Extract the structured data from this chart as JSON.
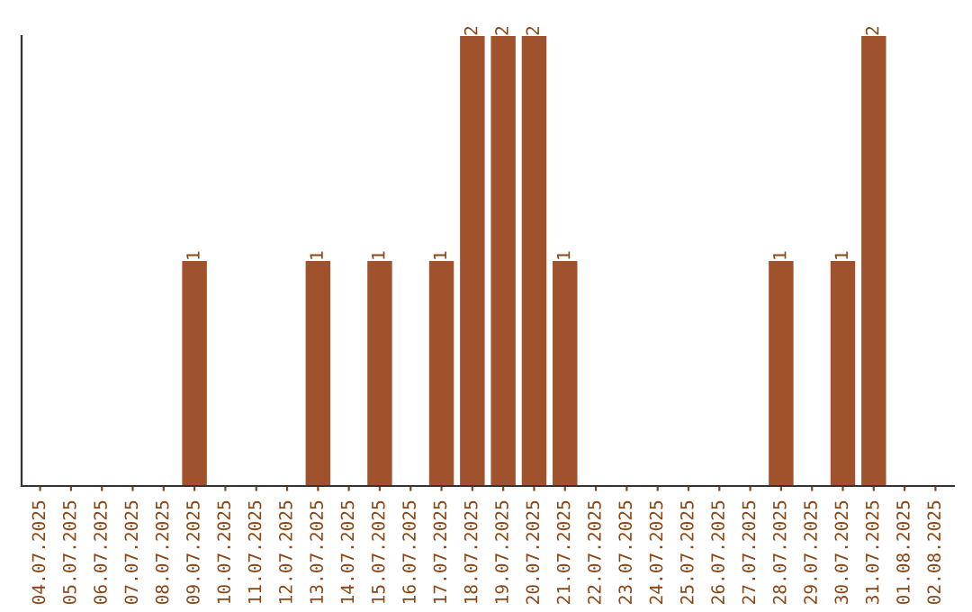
{
  "chart_data": {
    "type": "bar",
    "categories": [
      "04.07.2025",
      "05.07.2025",
      "06.07.2025",
      "07.07.2025",
      "08.07.2025",
      "09.07.2025",
      "10.07.2025",
      "11.07.2025",
      "12.07.2025",
      "13.07.2025",
      "14.07.2025",
      "15.07.2025",
      "16.07.2025",
      "17.07.2025",
      "18.07.2025",
      "19.07.2025",
      "20.07.2025",
      "21.07.2025",
      "22.07.2025",
      "23.07.2025",
      "24.07.2025",
      "25.07.2025",
      "26.07.2025",
      "27.07.2025",
      "28.07.2025",
      "29.07.2025",
      "30.07.2025",
      "31.07.2025",
      "01.08.2025",
      "02.08.2025"
    ],
    "values": [
      0,
      0,
      0,
      0,
      0,
      1,
      0,
      0,
      0,
      1,
      0,
      1,
      0,
      1,
      2,
      2,
      2,
      1,
      0,
      0,
      0,
      0,
      0,
      0,
      1,
      0,
      1,
      2,
      0,
      0
    ],
    "value_labels": [
      null,
      null,
      null,
      null,
      null,
      "1",
      null,
      null,
      null,
      "1",
      null,
      "1",
      null,
      "1",
      "2",
      "2",
      "2",
      "1",
      null,
      null,
      null,
      null,
      null,
      null,
      "1",
      null,
      "1",
      "2",
      null,
      null
    ],
    "color": "#a0522d",
    "ylim": [
      0,
      2
    ],
    "grid": false,
    "legend": false
  }
}
